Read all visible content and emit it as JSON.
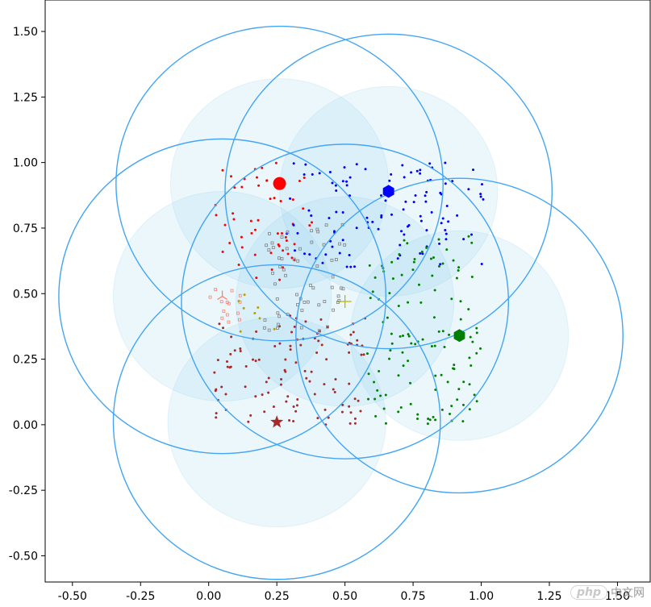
{
  "chart_data": {
    "type": "scatter",
    "title": "",
    "xlabel": "",
    "ylabel": "",
    "xlim": [
      -0.6,
      1.62
    ],
    "ylim": [
      -0.6,
      1.62
    ],
    "x_ticks": [
      "-0.50",
      "-0.25",
      "0.00",
      "0.25",
      "0.50",
      "0.75",
      "1.00",
      "1.25",
      "1.50"
    ],
    "y_ticks": [
      "1.50",
      "1.25",
      "1.00",
      "0.75",
      "0.50",
      "0.25",
      "0.00",
      "-0.25",
      "-0.50"
    ],
    "grid": false,
    "centers": [
      {
        "x": 0.26,
        "y": 0.92,
        "marker": "circle",
        "color": "#ff0000"
      },
      {
        "x": 0.66,
        "y": 0.89,
        "marker": "hexagon",
        "color": "#0000ff"
      },
      {
        "x": 0.92,
        "y": 0.34,
        "marker": "hexagon",
        "color": "#008000"
      },
      {
        "x": 0.25,
        "y": 0.01,
        "marker": "star",
        "color": "#a52a2a"
      },
      {
        "x": 0.05,
        "y": 0.49,
        "marker": "tri",
        "color": "#fa8072"
      },
      {
        "x": 0.5,
        "y": 0.47,
        "marker": "plus",
        "color": "#b8b800"
      }
    ],
    "inner_radius": 0.4,
    "outer_radius": 0.6,
    "cluster_colors": [
      "#ff0000",
      "#0000ff",
      "#008000",
      "#a52a2a",
      "#808080",
      "#fa8072",
      "#b8a000"
    ],
    "ring_color": "#42a5f5",
    "fill_color": "#87ceeb"
  },
  "watermark": {
    "badge": "php",
    "text": "中文网"
  }
}
